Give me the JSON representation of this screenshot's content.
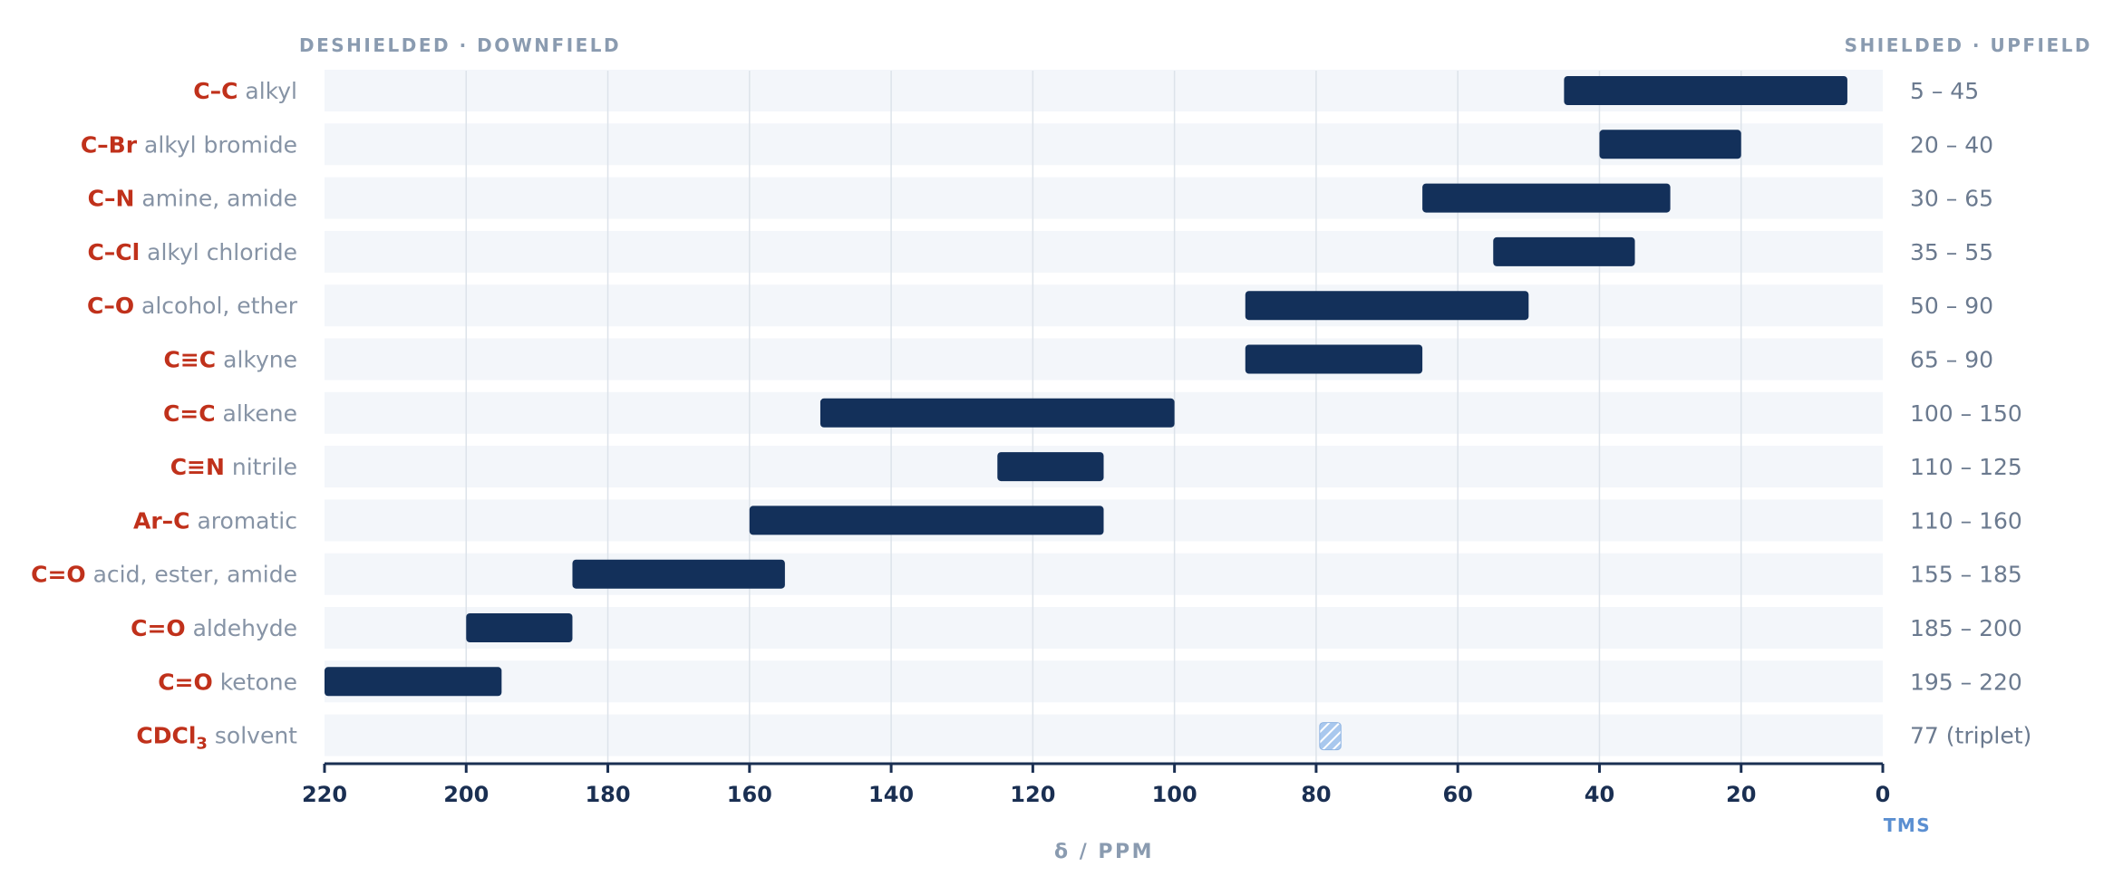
{
  "chart_data": {
    "type": "bar",
    "orientation": "horizontal-range",
    "header_left": "DESHIELDED · DOWNFIELD",
    "header_right": "SHIELDED · UPFIELD",
    "xlabel": "δ / PPM",
    "x_reference_label": "TMS",
    "xlim": [
      220,
      0
    ],
    "xticks": [
      220,
      200,
      180,
      160,
      140,
      120,
      100,
      80,
      60,
      40,
      20,
      0
    ],
    "grid": true,
    "colors": {
      "bar": "#13305a",
      "row_bg": "#f3f6fa",
      "group": "#c0311b",
      "label": "#8693a5",
      "solvent": "#a9c8ee"
    },
    "rows": [
      {
        "group": "C–C",
        "label": "alkyl",
        "min": 5,
        "max": 45,
        "range_label": "5 – 45"
      },
      {
        "group": "C–Br",
        "label": "alkyl bromide",
        "min": 20,
        "max": 40,
        "range_label": "20 – 40"
      },
      {
        "group": "C–N",
        "label": "amine, amide",
        "min": 30,
        "max": 65,
        "range_label": "30 – 65"
      },
      {
        "group": "C–Cl",
        "label": "alkyl chloride",
        "min": 35,
        "max": 55,
        "range_label": "35 – 55"
      },
      {
        "group": "C–O",
        "label": "alcohol, ether",
        "min": 50,
        "max": 90,
        "range_label": "50 – 90"
      },
      {
        "group": "C≡C",
        "label": "alkyne",
        "min": 65,
        "max": 90,
        "range_label": "65 – 90"
      },
      {
        "group": "C=C",
        "label": "alkene",
        "min": 100,
        "max": 150,
        "range_label": "100 – 150"
      },
      {
        "group": "C≡N",
        "label": "nitrile",
        "min": 110,
        "max": 125,
        "range_label": "110 – 125"
      },
      {
        "group": "Ar–C",
        "label": "aromatic",
        "min": 110,
        "max": 160,
        "range_label": "110 – 160"
      },
      {
        "group": "C=O",
        "label": "acid, ester, amide",
        "min": 155,
        "max": 185,
        "range_label": "155 – 185"
      },
      {
        "group": "C=O",
        "label": "aldehyde",
        "min": 185,
        "max": 200,
        "range_label": "185 – 200"
      },
      {
        "group": "C=O",
        "label": "ketone",
        "min": 195,
        "max": 220,
        "range_label": "195 – 220"
      },
      {
        "group": "CDCl",
        "group_sub": "3",
        "label": "solvent",
        "min": 76.5,
        "max": 79.5,
        "range_label": "77 (triplet)",
        "marker": "solvent"
      }
    ]
  }
}
